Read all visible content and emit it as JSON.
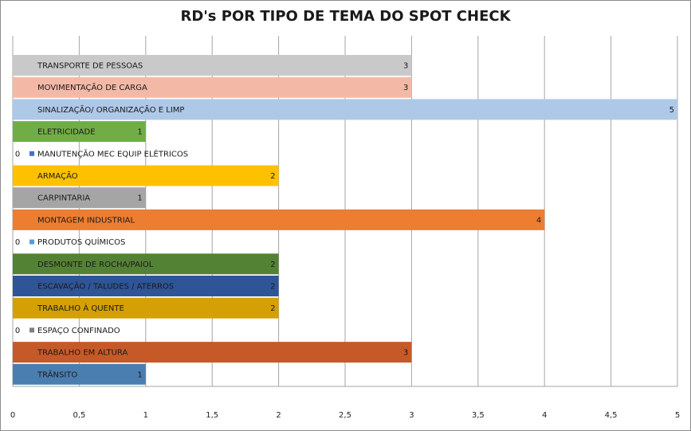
{
  "chart_data": {
    "type": "bar",
    "orientation": "horizontal",
    "title": "RD's POR TIPO DE TEMA DO SPOT CHECK",
    "xlim": [
      0,
      5
    ],
    "xticks": [
      "0",
      "0,5",
      "1",
      "1,5",
      "2",
      "2,5",
      "3",
      "3,5",
      "4",
      "4,5",
      "5"
    ],
    "grid": true,
    "categories": [
      "TRANSPORTE DE PESSOAS",
      "MOVIMENTAÇÃO DE CARGA",
      "SINALIZAÇÃO/ ORGANIZAÇÃO E LIMP",
      "ELETRICIDADE",
      "MANUTENÇÃO MEC EQUIP ELÉTRICOS",
      "ARMAÇÃO",
      "CARPINTARIA",
      "MONTAGEM INDUSTRIAL",
      "PRODUTOS QUÍMICOS",
      "DESMONTE DE ROCHA/PAIOL",
      "ESCAVAÇÃO / TALUDES / ATERROS",
      "TRABALHO À QUENTE",
      "ESPAÇO CONFINADO",
      "TRABALHO EM ALTURA",
      "TRÂNSITO"
    ],
    "values": [
      3,
      3,
      5,
      1,
      0,
      2,
      1,
      4,
      0,
      2,
      2,
      2,
      0,
      3,
      1
    ],
    "colors": [
      "#c9c9c9",
      "#f4b9a6",
      "#aec8e8",
      "#70ad47",
      "#4472c4",
      "#ffc000",
      "#a5a5a5",
      "#ed7d31",
      "#5b9bd5",
      "#548235",
      "#2f5597",
      "#d4a005",
      "#7f7f7f",
      "#c55a28",
      "#4a7eb0"
    ],
    "value_labels": [
      "3",
      "3",
      "5",
      "1",
      "0",
      "2",
      "1",
      "4",
      "0",
      "2",
      "2",
      "2",
      "0",
      "3",
      "1"
    ]
  }
}
